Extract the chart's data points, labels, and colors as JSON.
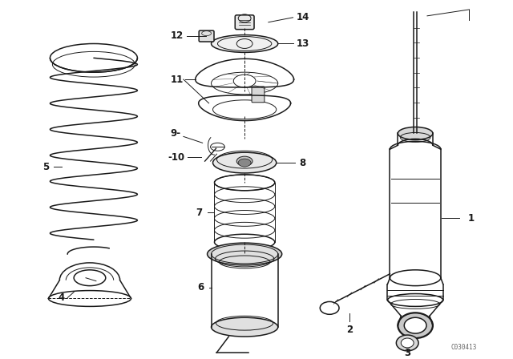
{
  "bg_color": "#ffffff",
  "line_color": "#1a1a1a",
  "watermark": "C030413",
  "figsize": [
    6.4,
    4.48
  ],
  "dpi": 100
}
